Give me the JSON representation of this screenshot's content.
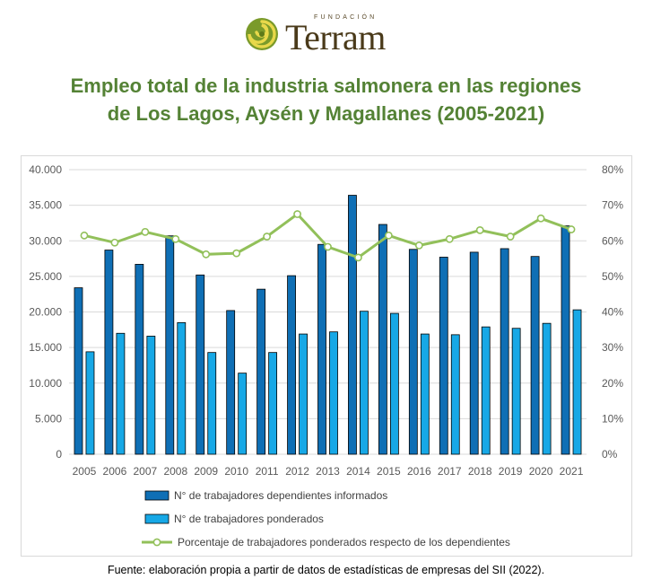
{
  "brand": {
    "small_text": "FUNDACIÓN",
    "name": "Terram",
    "colors": {
      "outer": "#7a9a2a",
      "swirl": "#e8d84a",
      "text": "#4a3a1a"
    }
  },
  "title_lines": [
    "Empleo total de la industria salmonera en las regiones",
    "de Los Lagos, Aysén y Magallanes (2005-2021)"
  ],
  "source": "Fuente: elaboración propia a partir de datos de estadísticas de empresas del SII (2022).",
  "chart_data": {
    "type": "bar",
    "combo": "bar+line",
    "categories": [
      "2005",
      "2006",
      "2007",
      "2008",
      "2009",
      "2010",
      "2011",
      "2012",
      "2013",
      "2014",
      "2015",
      "2016",
      "2017",
      "2018",
      "2019",
      "2020",
      "2021"
    ],
    "series": [
      {
        "name": "N° de trabajadores dependientes informados",
        "type": "bar",
        "axis": "left",
        "color": "#0f6fb5",
        "values": [
          23400,
          28700,
          26700,
          30700,
          25200,
          20200,
          23200,
          25100,
          29500,
          36400,
          32300,
          28800,
          27700,
          28400,
          28900,
          27800,
          32100
        ]
      },
      {
        "name": "N° de trabajadores ponderados",
        "type": "bar",
        "axis": "left",
        "color": "#17a8e6",
        "values": [
          14400,
          17000,
          16600,
          18500,
          14300,
          11400,
          14300,
          16900,
          17200,
          20100,
          19800,
          16900,
          16800,
          17900,
          17700,
          18400,
          20300
        ]
      },
      {
        "name": "Porcentaje de trabajadores ponderados respecto de los dependientes",
        "type": "line",
        "axis": "right",
        "color": "#92c05a",
        "values": [
          0.615,
          0.595,
          0.625,
          0.605,
          0.562,
          0.565,
          0.612,
          0.675,
          0.583,
          0.553,
          0.615,
          0.587,
          0.605,
          0.63,
          0.612,
          0.663,
          0.632
        ]
      }
    ],
    "y_left": {
      "min": 0,
      "max": 40000,
      "ticks": [
        "0",
        "5.000",
        "10.000",
        "15.000",
        "20.000",
        "25.000",
        "30.000",
        "35.000",
        "40.000"
      ]
    },
    "y_right": {
      "min": 0,
      "max": 0.8,
      "ticks": [
        "0%",
        "10%",
        "20%",
        "30%",
        "40%",
        "50%",
        "60%",
        "70%",
        "80%"
      ]
    },
    "grid": true,
    "legend_position": "bottom"
  }
}
